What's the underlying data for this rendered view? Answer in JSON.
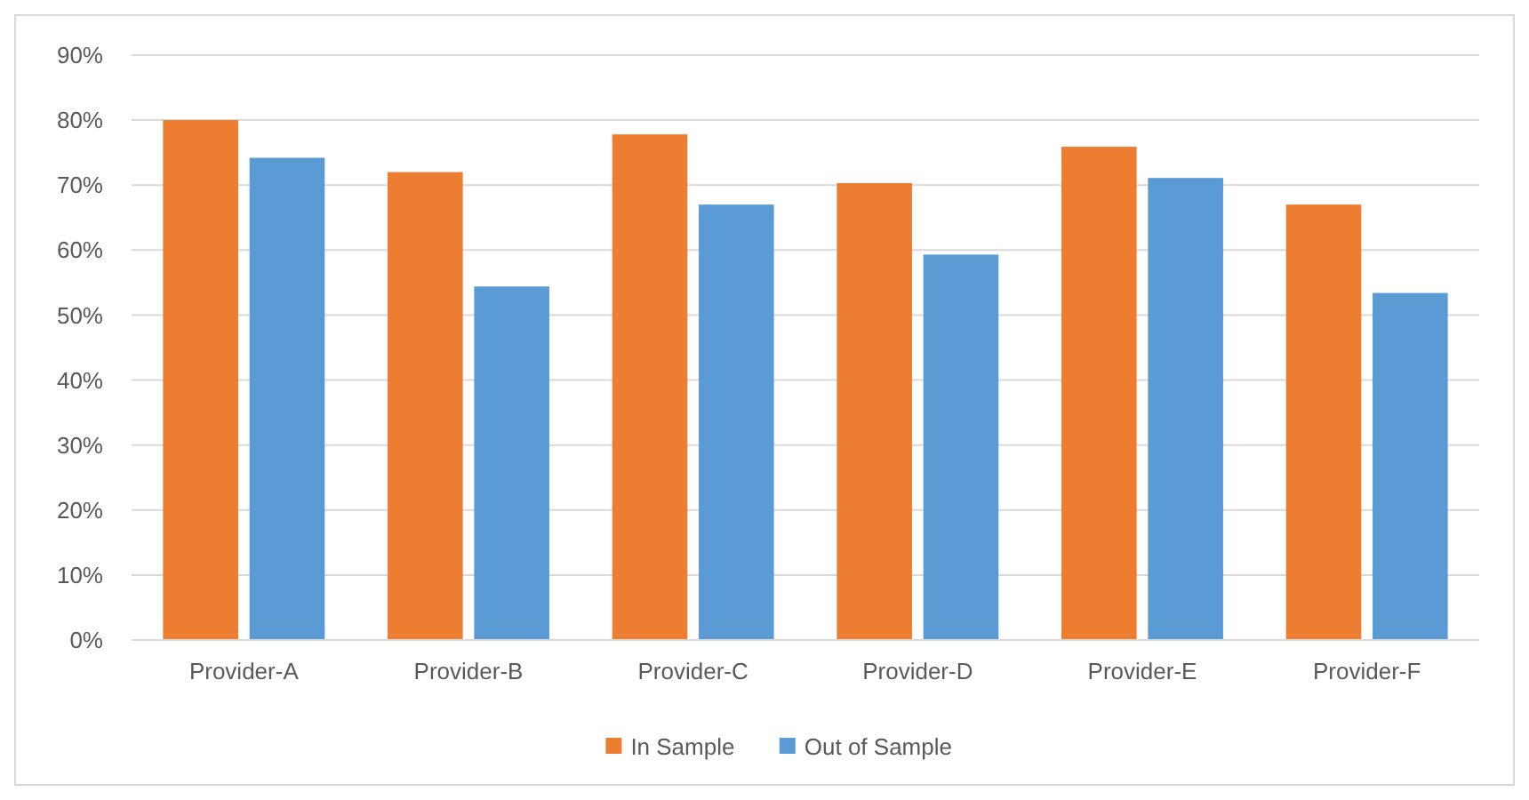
{
  "chart_data": {
    "type": "bar",
    "categories": [
      "Provider-A",
      "Provider-B",
      "Provider-C",
      "Provider-D",
      "Provider-E",
      "Provider-F"
    ],
    "series": [
      {
        "name": "In Sample",
        "color": "#ed7d31",
        "values": [
          80,
          72,
          77.8,
          70.3,
          75.9,
          67
        ]
      },
      {
        "name": "Out of Sample",
        "color": "#5b9bd5",
        "values": [
          74.2,
          54.4,
          67,
          59.3,
          71.1,
          53.4
        ]
      }
    ],
    "ylim": [
      0,
      90
    ],
    "yticks": [
      {
        "value": 0,
        "label": "0%"
      },
      {
        "value": 10,
        "label": "10%"
      },
      {
        "value": 20,
        "label": "20%"
      },
      {
        "value": 30,
        "label": "30%"
      },
      {
        "value": 40,
        "label": "40%"
      },
      {
        "value": 50,
        "label": "50%"
      },
      {
        "value": 60,
        "label": "60%"
      },
      {
        "value": 70,
        "label": "70%"
      },
      {
        "value": 80,
        "label": "80%"
      },
      {
        "value": 90,
        "label": "90%"
      }
    ],
    "grid": "y",
    "legend": "bottom"
  }
}
